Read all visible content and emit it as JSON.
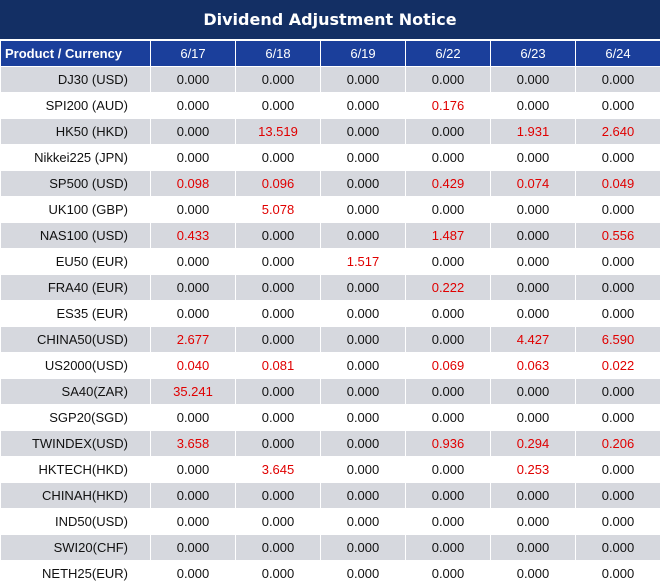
{
  "title": "Dividend Adjustment Notice",
  "header": {
    "product_label": "Product / Currency",
    "dates": [
      "6/17",
      "6/18",
      "6/19",
      "6/22",
      "6/23",
      "6/24"
    ]
  },
  "colors": {
    "title_bg": "#132f64",
    "header_bg": "#1b3f9b",
    "shade": "#d6d8de",
    "nonzero": "#e00000"
  },
  "rows": [
    {
      "product": "DJ30 (USD)",
      "values": [
        "0.000",
        "0.000",
        "0.000",
        "0.000",
        "0.000",
        "0.000"
      ]
    },
    {
      "product": "SPI200 (AUD)",
      "values": [
        "0.000",
        "0.000",
        "0.000",
        "0.176",
        "0.000",
        "0.000"
      ]
    },
    {
      "product": "HK50 (HKD)",
      "values": [
        "0.000",
        "13.519",
        "0.000",
        "0.000",
        "1.931",
        "2.640"
      ]
    },
    {
      "product": "Nikkei225 (JPN)",
      "values": [
        "0.000",
        "0.000",
        "0.000",
        "0.000",
        "0.000",
        "0.000"
      ]
    },
    {
      "product": "SP500 (USD)",
      "values": [
        "0.098",
        "0.096",
        "0.000",
        "0.429",
        "0.074",
        "0.049"
      ]
    },
    {
      "product": "UK100 (GBP)",
      "values": [
        "0.000",
        "5.078",
        "0.000",
        "0.000",
        "0.000",
        "0.000"
      ]
    },
    {
      "product": "NAS100 (USD)",
      "values": [
        "0.433",
        "0.000",
        "0.000",
        "1.487",
        "0.000",
        "0.556"
      ]
    },
    {
      "product": "EU50 (EUR)",
      "values": [
        "0.000",
        "0.000",
        "1.517",
        "0.000",
        "0.000",
        "0.000"
      ]
    },
    {
      "product": "FRA40 (EUR)",
      "values": [
        "0.000",
        "0.000",
        "0.000",
        "0.222",
        "0.000",
        "0.000"
      ]
    },
    {
      "product": "ES35 (EUR)",
      "values": [
        "0.000",
        "0.000",
        "0.000",
        "0.000",
        "0.000",
        "0.000"
      ]
    },
    {
      "product": "CHINA50(USD)",
      "values": [
        "2.677",
        "0.000",
        "0.000",
        "0.000",
        "4.427",
        "6.590"
      ]
    },
    {
      "product": "US2000(USD)",
      "values": [
        "0.040",
        "0.081",
        "0.000",
        "0.069",
        "0.063",
        "0.022"
      ]
    },
    {
      "product": "SA40(ZAR)",
      "values": [
        "35.241",
        "0.000",
        "0.000",
        "0.000",
        "0.000",
        "0.000"
      ]
    },
    {
      "product": "SGP20(SGD)",
      "values": [
        "0.000",
        "0.000",
        "0.000",
        "0.000",
        "0.000",
        "0.000"
      ]
    },
    {
      "product": "TWINDEX(USD)",
      "values": [
        "3.658",
        "0.000",
        "0.000",
        "0.936",
        "0.294",
        "0.206"
      ]
    },
    {
      "product": "HKTECH(HKD)",
      "values": [
        "0.000",
        "3.645",
        "0.000",
        "0.000",
        "0.253",
        "0.000"
      ]
    },
    {
      "product": "CHINAH(HKD)",
      "values": [
        "0.000",
        "0.000",
        "0.000",
        "0.000",
        "0.000",
        "0.000"
      ]
    },
    {
      "product": "IND50(USD)",
      "values": [
        "0.000",
        "0.000",
        "0.000",
        "0.000",
        "0.000",
        "0.000"
      ]
    },
    {
      "product": "SWI20(CHF)",
      "values": [
        "0.000",
        "0.000",
        "0.000",
        "0.000",
        "0.000",
        "0.000"
      ]
    },
    {
      "product": "NETH25(EUR)",
      "values": [
        "0.000",
        "0.000",
        "0.000",
        "0.000",
        "0.000",
        "0.000"
      ]
    }
  ]
}
